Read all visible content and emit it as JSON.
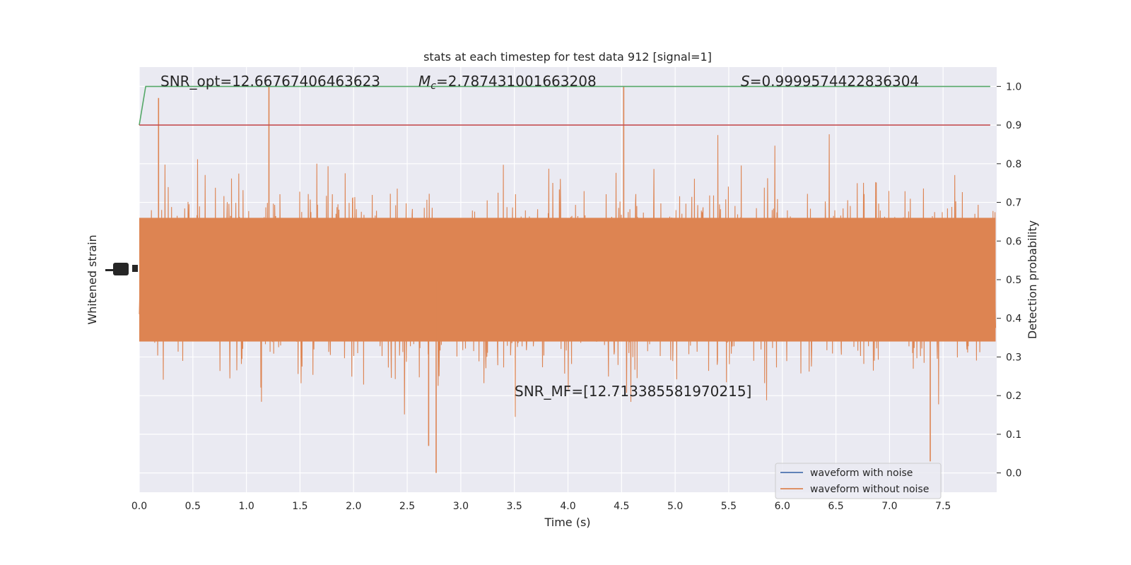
{
  "chart_data": {
    "type": "line",
    "title": "stats at each timestep for test data 912 [signal=1]",
    "xlabel": "Time (s)",
    "ylabel_left": "Whitened strain",
    "ylabel_right": "Detection probability",
    "xlim": [
      0.0,
      8.0
    ],
    "ylim_right": [
      -0.05,
      1.05
    ],
    "x_ticks": [
      "0.0",
      "0.5",
      "1.0",
      "1.5",
      "2.0",
      "2.5",
      "3.0",
      "3.5",
      "4.0",
      "4.5",
      "5.0",
      "5.5",
      "6.0",
      "6.5",
      "7.0",
      "7.5"
    ],
    "y_ticks_right": [
      "0.0",
      "0.1",
      "0.2",
      "0.3",
      "0.4",
      "0.5",
      "0.6",
      "0.7",
      "0.8",
      "0.9",
      "1.0"
    ],
    "grid": true,
    "legend_placement": "lower-right",
    "annotations": {
      "snr_opt": "SNR_opt=12.66767406463623",
      "mc_symbol": "M",
      "mc_sub": "c",
      "mc_value": "=2.787431001663208",
      "s_symbol": "S",
      "s_value": "=0.9999574422836304",
      "snr_mf": "SNR_MF=[12.713385581970215]"
    },
    "series": [
      {
        "name": "waveform with noise",
        "color": "#4c72b0"
      },
      {
        "name": "waveform without noise",
        "color": "#dd8452"
      },
      {
        "color": "#55a868",
        "x": [
          0.0,
          0.06,
          7.94
        ],
        "y": [
          0.9,
          1.0,
          1.0
        ]
      },
      {
        "color": "#c44e52",
        "x": [
          0.0,
          7.94
        ],
        "y": [
          0.9,
          0.9
        ]
      }
    ],
    "strain_envelope": {
      "center": 0.5,
      "core_half_width": 0.16,
      "max_value": 1.0,
      "min_value": 0.0,
      "notable_peaks": [
        {
          "x": 0.18,
          "y": 0.97
        },
        {
          "x": 1.21,
          "y": 1.0
        },
        {
          "x": 4.52,
          "y": 1.0
        },
        {
          "x": 2.77,
          "y": 0.0
        },
        {
          "x": 7.38,
          "y": 0.03
        },
        {
          "x": 2.7,
          "y": 0.07
        }
      ]
    }
  }
}
